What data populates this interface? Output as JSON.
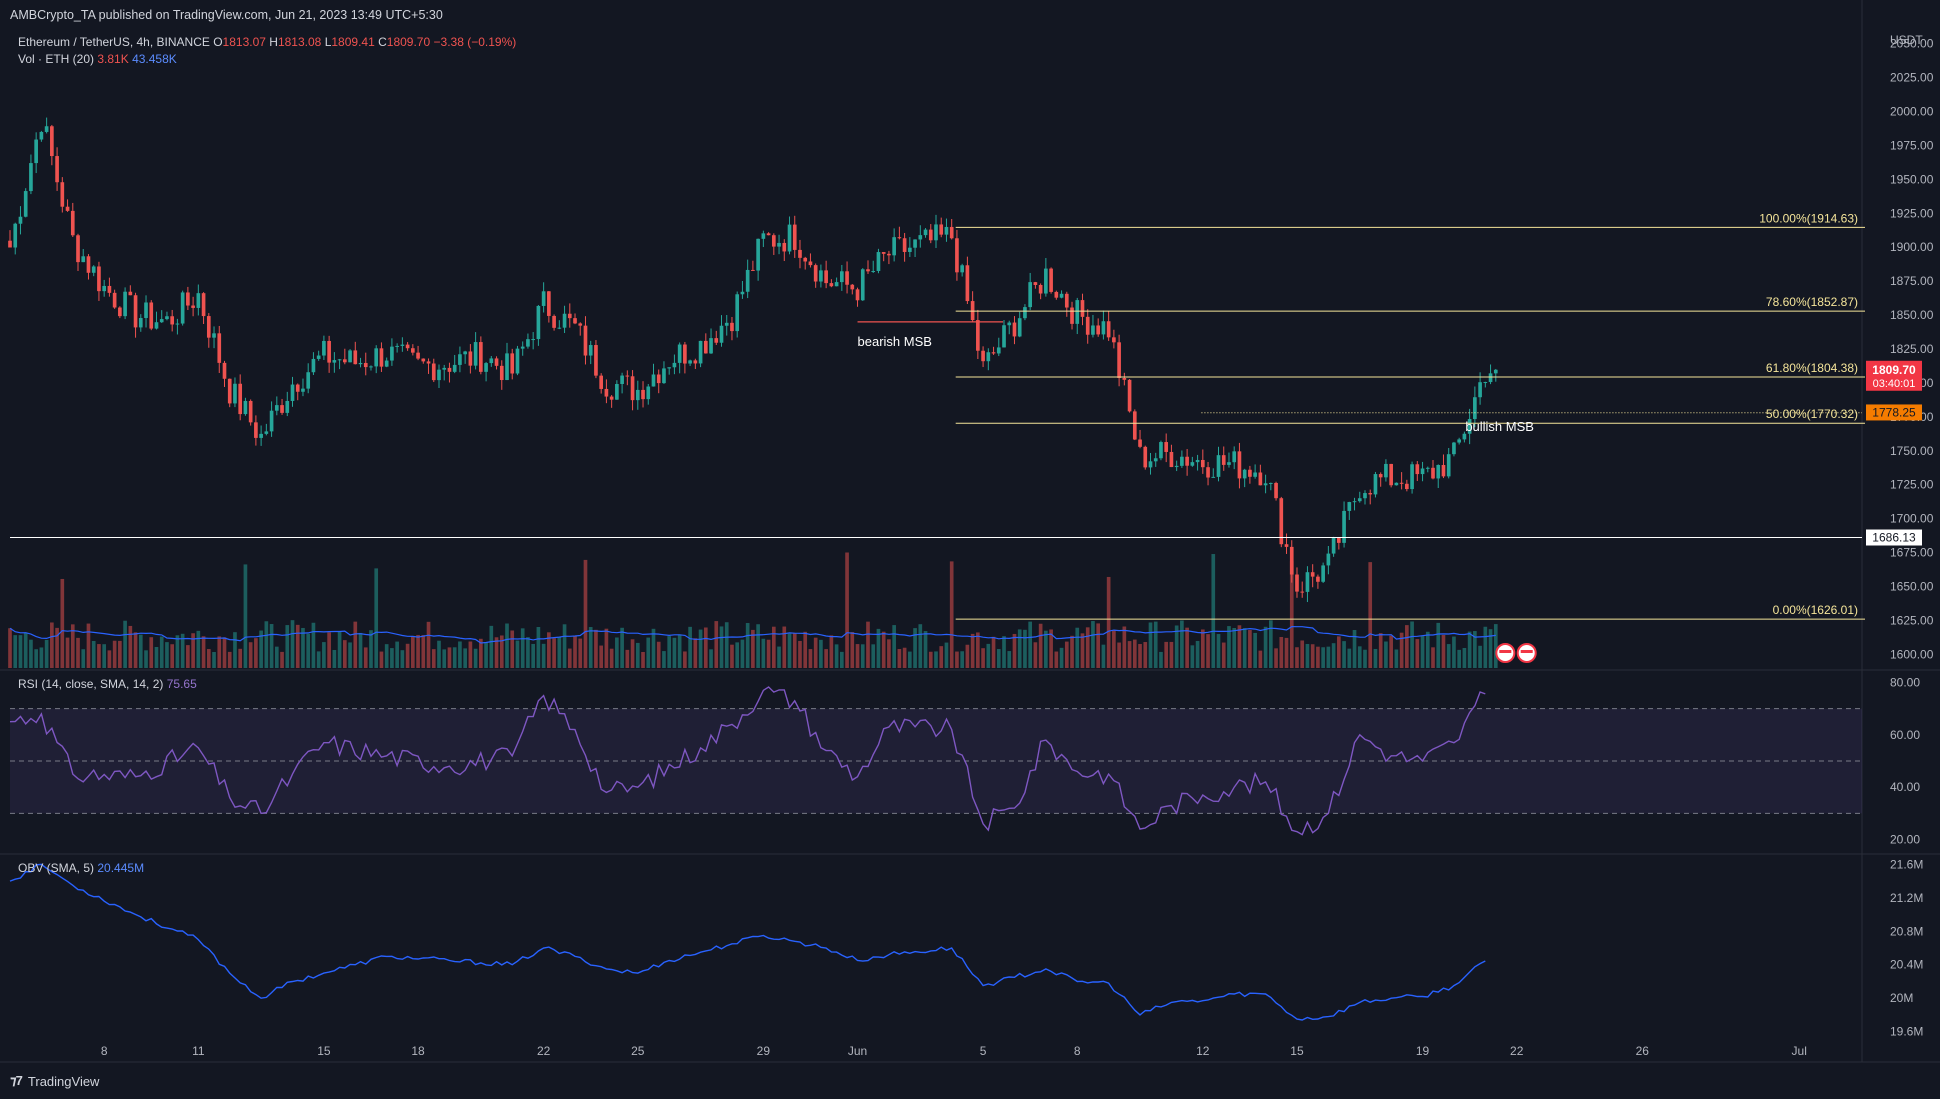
{
  "publisher": "AMBCrypto_TA published on TradingView.com, Jun 21, 2023 13:49 UTC+5:30",
  "legend": {
    "symbol": "Ethereum / TetherUS, 4h, BINANCE",
    "o_label": "O",
    "o": "1813.07",
    "h_label": "H",
    "h": "1813.08",
    "l_label": "L",
    "l": "1809.41",
    "c_label": "C",
    "c": "1809.70",
    "change": "−3.38 (−0.19%)",
    "vol_label": "Vol · ETH (20)",
    "vol_value": "3.81K",
    "vol_ma": "43.458K",
    "rsi_label": "RSI (14, close, SMA, 14, 2)",
    "rsi_value": "75.65",
    "obv_label": "OBV (SMA, 5)",
    "obv_value": "20.445M"
  },
  "footer": {
    "brand": "TradingView"
  },
  "colors": {
    "up": "#26a69a",
    "down": "#ef5350",
    "fib": "#f5e59a",
    "rsi": "#7e57c2",
    "obv": "#2962ff",
    "background": "#131722"
  },
  "chart_data": [
    {
      "type": "candlestick",
      "currency": "USDT",
      "ylim": [
        1590,
        2060
      ],
      "y_ticks": [
        "1600.00",
        "1625.00",
        "1650.00",
        "1675.00",
        "1700.00",
        "1725.00",
        "1750.00",
        "1775.00",
        "1800.00",
        "1825.00",
        "1850.00",
        "1875.00",
        "1900.00",
        "1925.00",
        "1950.00",
        "1975.00",
        "2000.00",
        "2025.00",
        "2050.00"
      ],
      "x_ticks": [
        "8",
        "11",
        "15",
        "18",
        "22",
        "25",
        "29",
        "Jun",
        "5",
        "8",
        "12",
        "15",
        "19",
        "22",
        "26",
        "Jul"
      ],
      "fib_levels": [
        {
          "label": "100.00%(1914.63)",
          "value": 1914.63
        },
        {
          "label": "78.60%(1852.87)",
          "value": 1852.87
        },
        {
          "label": "61.80%(1804.38)",
          "value": 1804.38
        },
        {
          "label": "50.00%(1770.32)",
          "value": 1770.32
        },
        {
          "label": "0.00%(1626.01)",
          "value": 1626.01
        }
      ],
      "horizontal_line": {
        "label": "1686.13",
        "value": 1686.13
      },
      "price_badges": [
        {
          "label": "1809.70",
          "sub": "03:40:01",
          "value": 1809.7,
          "color": "#f23645"
        },
        {
          "label": "1778.25",
          "value": 1778.25,
          "color": "#f57c00"
        }
      ],
      "annotations": [
        {
          "text": "bearish MSB",
          "date": "2023-06-01",
          "value": 1843
        },
        {
          "text": "bullish MSB",
          "date": "2023-06-20",
          "value": 1778
        }
      ],
      "close_path": [
        {
          "date": "2023-05-05",
          "value": 1900
        },
        {
          "date": "2023-05-06",
          "value": 1995
        },
        {
          "date": "2023-05-07",
          "value": 1905
        },
        {
          "date": "2023-05-08",
          "value": 1870
        },
        {
          "date": "2023-05-09",
          "value": 1850
        },
        {
          "date": "2023-05-10",
          "value": 1845
        },
        {
          "date": "2023-05-11",
          "value": 1865
        },
        {
          "date": "2023-05-12",
          "value": 1795
        },
        {
          "date": "2023-05-13",
          "value": 1760
        },
        {
          "date": "2023-05-14",
          "value": 1800
        },
        {
          "date": "2023-05-15",
          "value": 1820
        },
        {
          "date": "2023-05-16",
          "value": 1815
        },
        {
          "date": "2023-05-17",
          "value": 1822
        },
        {
          "date": "2023-05-18",
          "value": 1812
        },
        {
          "date": "2023-05-19",
          "value": 1815
        },
        {
          "date": "2023-05-20",
          "value": 1820
        },
        {
          "date": "2023-05-21",
          "value": 1808
        },
        {
          "date": "2023-05-22",
          "value": 1858
        },
        {
          "date": "2023-05-23",
          "value": 1840
        },
        {
          "date": "2023-05-24",
          "value": 1800
        },
        {
          "date": "2023-05-25",
          "value": 1795
        },
        {
          "date": "2023-05-26",
          "value": 1818
        },
        {
          "date": "2023-05-27",
          "value": 1828
        },
        {
          "date": "2023-05-28",
          "value": 1850
        },
        {
          "date": "2023-05-29",
          "value": 1905
        },
        {
          "date": "2023-05-30",
          "value": 1908
        },
        {
          "date": "2023-05-31",
          "value": 1875
        },
        {
          "date": "2023-06-01",
          "value": 1870
        },
        {
          "date": "2023-06-02",
          "value": 1895
        },
        {
          "date": "2023-06-03",
          "value": 1902
        },
        {
          "date": "2023-06-04",
          "value": 1908
        },
        {
          "date": "2023-06-05",
          "value": 1810
        },
        {
          "date": "2023-06-06",
          "value": 1845
        },
        {
          "date": "2023-06-07",
          "value": 1880
        },
        {
          "date": "2023-06-08",
          "value": 1850
        },
        {
          "date": "2023-06-09",
          "value": 1840
        },
        {
          "date": "2023-06-10",
          "value": 1745
        },
        {
          "date": "2023-06-11",
          "value": 1748
        },
        {
          "date": "2023-06-12",
          "value": 1742
        },
        {
          "date": "2023-06-13",
          "value": 1740
        },
        {
          "date": "2023-06-14",
          "value": 1735
        },
        {
          "date": "2023-06-15",
          "value": 1650
        },
        {
          "date": "2023-06-16",
          "value": 1665
        },
        {
          "date": "2023-06-17",
          "value": 1725
        },
        {
          "date": "2023-06-18",
          "value": 1730
        },
        {
          "date": "2023-06-19",
          "value": 1730
        },
        {
          "date": "2023-06-20",
          "value": 1745
        },
        {
          "date": "2023-06-21",
          "value": 1809.7
        }
      ]
    },
    {
      "type": "line",
      "name": "RSI (14, close, SMA, 14, 2)",
      "ylim": [
        16,
        84
      ],
      "y_ticks": [
        "80.00",
        "60.00",
        "40.00",
        "20.00"
      ],
      "bands": [
        70,
        50,
        30
      ],
      "points": [
        {
          "date": "2023-05-05",
          "value": 65
        },
        {
          "date": "2023-05-06",
          "value": 68
        },
        {
          "date": "2023-05-07",
          "value": 45
        },
        {
          "date": "2023-05-09",
          "value": 44
        },
        {
          "date": "2023-05-11",
          "value": 55
        },
        {
          "date": "2023-05-12",
          "value": 36
        },
        {
          "date": "2023-05-13",
          "value": 30
        },
        {
          "date": "2023-05-14",
          "value": 45
        },
        {
          "date": "2023-05-15",
          "value": 57
        },
        {
          "date": "2023-05-17",
          "value": 52
        },
        {
          "date": "2023-05-19",
          "value": 48
        },
        {
          "date": "2023-05-21",
          "value": 52
        },
        {
          "date": "2023-05-22",
          "value": 75
        },
        {
          "date": "2023-05-23",
          "value": 62
        },
        {
          "date": "2023-05-24",
          "value": 38
        },
        {
          "date": "2023-05-25",
          "value": 40
        },
        {
          "date": "2023-05-27",
          "value": 55
        },
        {
          "date": "2023-05-28",
          "value": 64
        },
        {
          "date": "2023-05-29",
          "value": 77
        },
        {
          "date": "2023-05-30",
          "value": 73
        },
        {
          "date": "2023-05-31",
          "value": 54
        },
        {
          "date": "2023-06-01",
          "value": 44
        },
        {
          "date": "2023-06-02",
          "value": 63
        },
        {
          "date": "2023-06-04",
          "value": 62
        },
        {
          "date": "2023-06-05",
          "value": 26
        },
        {
          "date": "2023-06-06",
          "value": 32
        },
        {
          "date": "2023-06-07",
          "value": 58
        },
        {
          "date": "2023-06-08",
          "value": 46
        },
        {
          "date": "2023-06-09",
          "value": 45
        },
        {
          "date": "2023-06-10",
          "value": 24
        },
        {
          "date": "2023-06-11",
          "value": 33
        },
        {
          "date": "2023-06-12",
          "value": 37
        },
        {
          "date": "2023-06-13",
          "value": 40
        },
        {
          "date": "2023-06-14",
          "value": 42
        },
        {
          "date": "2023-06-15",
          "value": 23
        },
        {
          "date": "2023-06-16",
          "value": 30
        },
        {
          "date": "2023-06-17",
          "value": 60
        },
        {
          "date": "2023-06-18",
          "value": 52
        },
        {
          "date": "2023-06-19",
          "value": 50
        },
        {
          "date": "2023-06-20",
          "value": 57
        },
        {
          "date": "2023-06-21",
          "value": 75.65
        }
      ]
    },
    {
      "type": "line",
      "name": "OBV (SMA, 5)",
      "ylim": [
        19.5,
        21.7
      ],
      "y_ticks": [
        "21.6M",
        "21.2M",
        "20.8M",
        "20.4M",
        "20M",
        "19.6M"
      ],
      "points": [
        {
          "date": "2023-05-05",
          "value": 21.4
        },
        {
          "date": "2023-05-06",
          "value": 21.6
        },
        {
          "date": "2023-05-07",
          "value": 21.35
        },
        {
          "date": "2023-05-09",
          "value": 21.0
        },
        {
          "date": "2023-05-11",
          "value": 20.7
        },
        {
          "date": "2023-05-12",
          "value": 20.3
        },
        {
          "date": "2023-05-13",
          "value": 20.0
        },
        {
          "date": "2023-05-14",
          "value": 20.2
        },
        {
          "date": "2023-05-15",
          "value": 20.3
        },
        {
          "date": "2023-05-16",
          "value": 20.4
        },
        {
          "date": "2023-05-17",
          "value": 20.5
        },
        {
          "date": "2023-05-19",
          "value": 20.45
        },
        {
          "date": "2023-05-21",
          "value": 20.4
        },
        {
          "date": "2023-05-22",
          "value": 20.6
        },
        {
          "date": "2023-05-23",
          "value": 20.5
        },
        {
          "date": "2023-05-24",
          "value": 20.35
        },
        {
          "date": "2023-05-25",
          "value": 20.3
        },
        {
          "date": "2023-05-26",
          "value": 20.45
        },
        {
          "date": "2023-05-27",
          "value": 20.55
        },
        {
          "date": "2023-05-28",
          "value": 20.65
        },
        {
          "date": "2023-05-29",
          "value": 20.75
        },
        {
          "date": "2023-05-30",
          "value": 20.68
        },
        {
          "date": "2023-05-31",
          "value": 20.6
        },
        {
          "date": "2023-06-01",
          "value": 20.45
        },
        {
          "date": "2023-06-02",
          "value": 20.52
        },
        {
          "date": "2023-06-04",
          "value": 20.6
        },
        {
          "date": "2023-06-05",
          "value": 20.15
        },
        {
          "date": "2023-06-06",
          "value": 20.25
        },
        {
          "date": "2023-06-07",
          "value": 20.35
        },
        {
          "date": "2023-06-08",
          "value": 20.2
        },
        {
          "date": "2023-06-09",
          "value": 20.18
        },
        {
          "date": "2023-06-10",
          "value": 19.8
        },
        {
          "date": "2023-06-11",
          "value": 19.95
        },
        {
          "date": "2023-06-12",
          "value": 19.97
        },
        {
          "date": "2023-06-13",
          "value": 20.05
        },
        {
          "date": "2023-06-14",
          "value": 20.05
        },
        {
          "date": "2023-06-15",
          "value": 19.75
        },
        {
          "date": "2023-06-16",
          "value": 19.78
        },
        {
          "date": "2023-06-17",
          "value": 19.95
        },
        {
          "date": "2023-06-18",
          "value": 20.0
        },
        {
          "date": "2023-06-19",
          "value": 20.02
        },
        {
          "date": "2023-06-20",
          "value": 20.15
        },
        {
          "date": "2023-06-21",
          "value": 20.445
        }
      ]
    }
  ]
}
